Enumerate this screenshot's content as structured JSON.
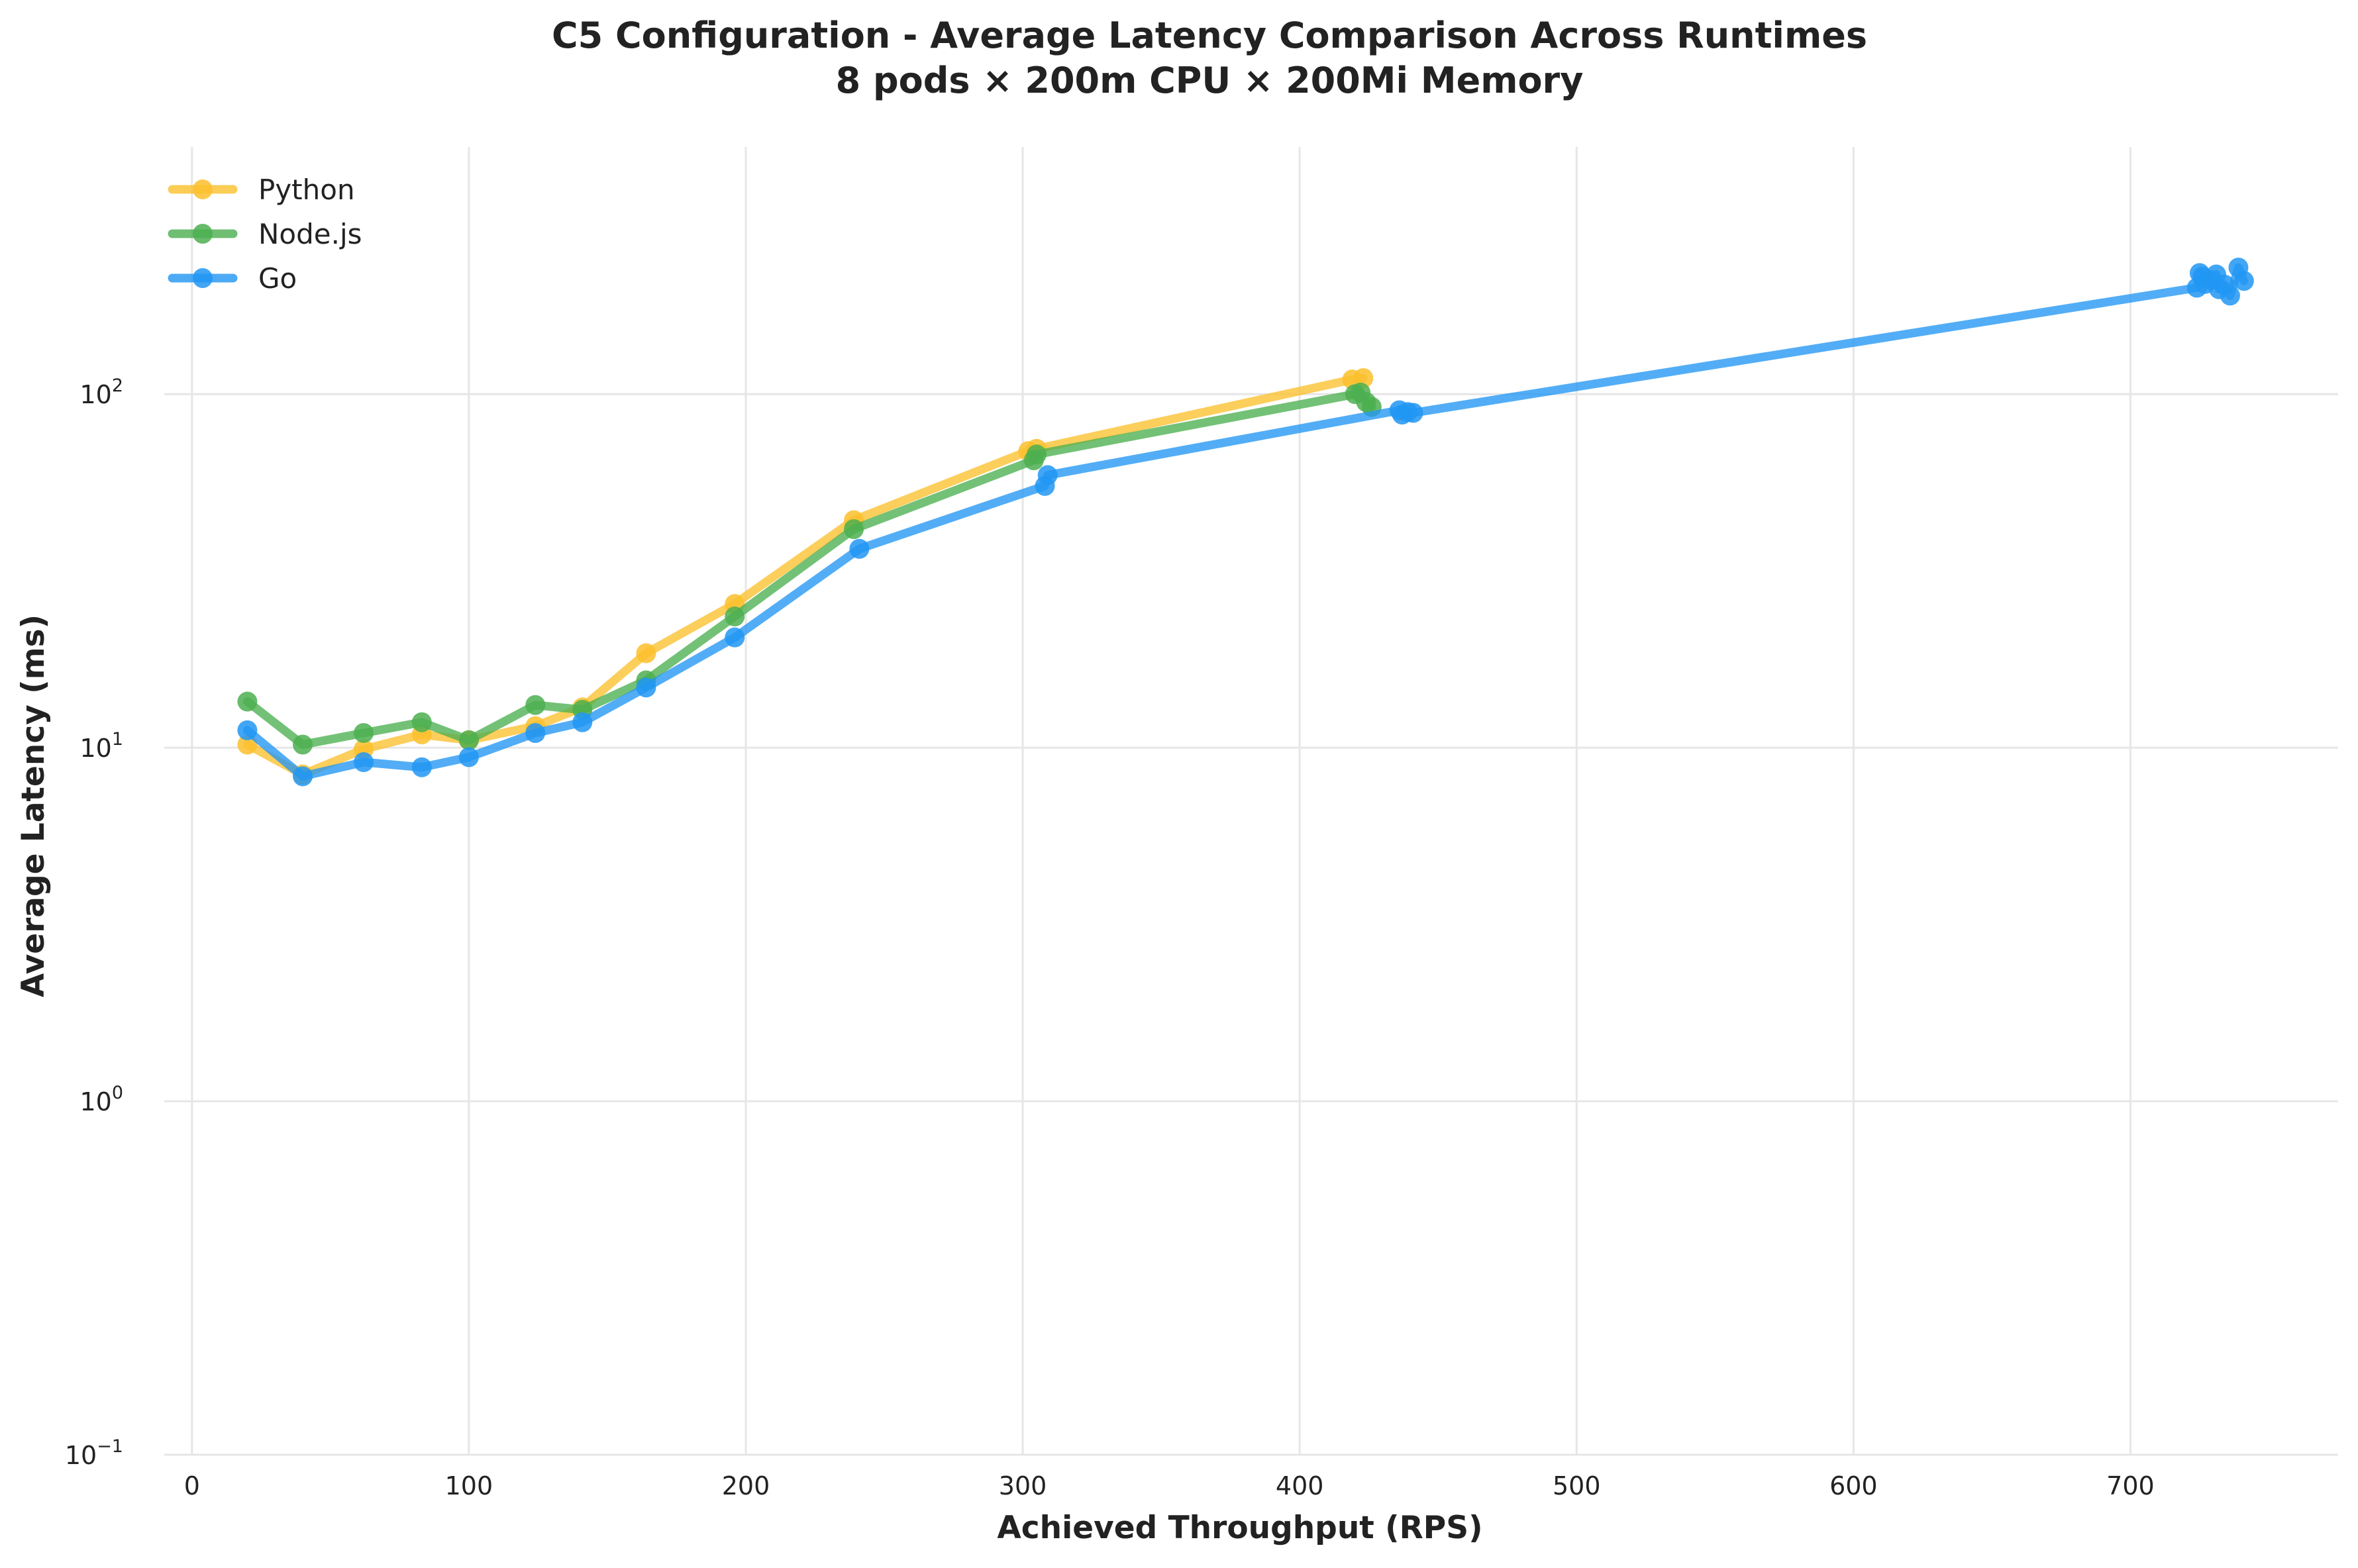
{
  "chart_data": {
    "type": "line",
    "title": "C5 Configuration - Average Latency Comparison Across Runtimes",
    "subtitle": "8 pods × 200m CPU × 200Mi Memory",
    "xlabel": "Achieved Throughput (RPS)",
    "ylabel": "Average Latency (ms)",
    "xlim": [
      -10,
      775
    ],
    "ylim": [
      0.1,
      500
    ],
    "y_scale": "log",
    "x_ticks": [
      {
        "value": 0,
        "label": "0"
      },
      {
        "value": 100,
        "label": "100"
      },
      {
        "value": 200,
        "label": "200"
      },
      {
        "value": 300,
        "label": "300"
      },
      {
        "value": 400,
        "label": "400"
      },
      {
        "value": 500,
        "label": "500"
      },
      {
        "value": 600,
        "label": "600"
      },
      {
        "value": 700,
        "label": "700"
      }
    ],
    "y_ticks": [
      {
        "value": 0.1,
        "base": "10",
        "exp": "−1"
      },
      {
        "value": 1,
        "base": "10",
        "exp": "0"
      },
      {
        "value": 10,
        "base": "10",
        "exp": "1"
      },
      {
        "value": 100,
        "base": "10",
        "exp": "2"
      }
    ],
    "grid": true,
    "legend_position": "top-left",
    "series": [
      {
        "name": "Python",
        "color": "#fbc02d",
        "points": [
          [
            20,
            10.2
          ],
          [
            40,
            8.4
          ],
          [
            62,
            9.9
          ],
          [
            83,
            10.9
          ],
          [
            100,
            10.5
          ],
          [
            124,
            11.5
          ],
          [
            141,
            13.0
          ],
          [
            164,
            18.5
          ],
          [
            196,
            25.5
          ],
          [
            239,
            44.0
          ],
          [
            302,
            69.0
          ],
          [
            305,
            70.0
          ],
          [
            419,
            110.0
          ],
          [
            423,
            111.0
          ]
        ]
      },
      {
        "name": "Node.js",
        "color": "#4caf50",
        "points": [
          [
            20,
            13.5
          ],
          [
            40,
            10.2
          ],
          [
            62,
            11.0
          ],
          [
            83,
            11.8
          ],
          [
            100,
            10.5
          ],
          [
            124,
            13.2
          ],
          [
            141,
            12.8
          ],
          [
            164,
            15.5
          ],
          [
            196,
            23.5
          ],
          [
            239,
            41.5
          ],
          [
            304,
            65.0
          ],
          [
            305,
            67.5
          ],
          [
            420,
            100.0
          ],
          [
            422,
            101.0
          ],
          [
            424,
            95.0
          ],
          [
            426,
            92.0
          ]
        ]
      },
      {
        "name": "Go",
        "color": "#2196f3",
        "points": [
          [
            20,
            11.2
          ],
          [
            40,
            8.3
          ],
          [
            62,
            9.1
          ],
          [
            83,
            8.8
          ],
          [
            100,
            9.4
          ],
          [
            124,
            11.0
          ],
          [
            141,
            11.8
          ],
          [
            164,
            14.8
          ],
          [
            196,
            20.5
          ],
          [
            241,
            36.5
          ],
          [
            308,
            55.0
          ],
          [
            309,
            59.0
          ],
          [
            436,
            90.0
          ],
          [
            437,
            87.5
          ],
          [
            439,
            89.0
          ],
          [
            441,
            88.5
          ],
          [
            724,
            200.0
          ],
          [
            725,
            220.0
          ],
          [
            726,
            215.0
          ],
          [
            727,
            205.0
          ],
          [
            729,
            210.0
          ],
          [
            731,
            218.0
          ],
          [
            732,
            198.0
          ],
          [
            734,
            204.0
          ],
          [
            736,
            190.0
          ],
          [
            739,
            228.0
          ],
          [
            741,
            209.0
          ]
        ]
      }
    ]
  }
}
